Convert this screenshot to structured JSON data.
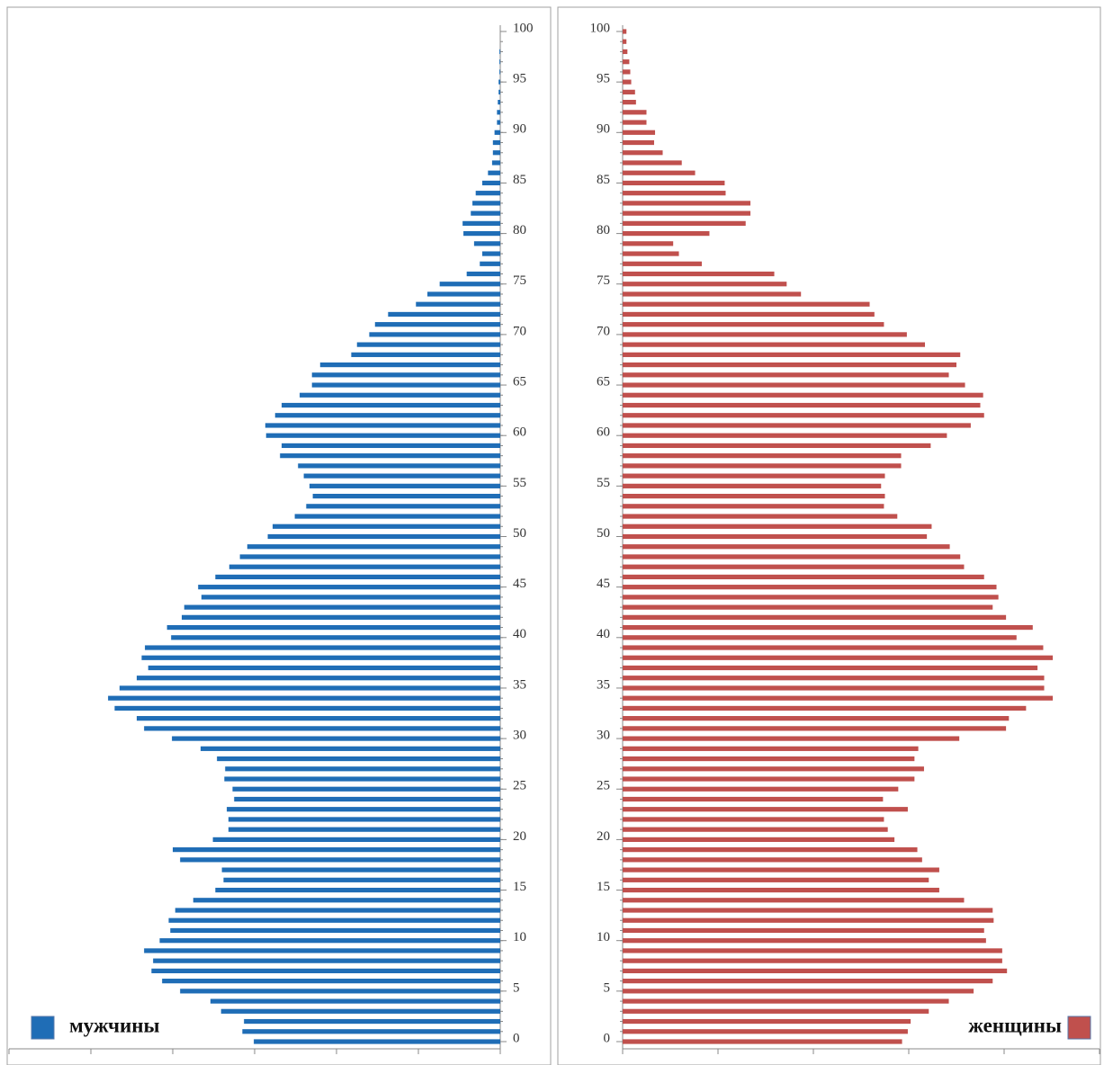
{
  "chart_data": [
    {
      "type": "hbar",
      "xdir": "left",
      "y": [
        0,
        1,
        2,
        3,
        4,
        5,
        6,
        7,
        8,
        9,
        10,
        11,
        12,
        13,
        14,
        15,
        16,
        17,
        18,
        19,
        20,
        21,
        22,
        23,
        24,
        25,
        26,
        27,
        28,
        29,
        30,
        31,
        32,
        33,
        34,
        35,
        36,
        37,
        38,
        39,
        40,
        41,
        42,
        43,
        44,
        45,
        46,
        47,
        48,
        49,
        50,
        51,
        52,
        53,
        54,
        55,
        56,
        57,
        58,
        59,
        60,
        61,
        62,
        63,
        64,
        65,
        66,
        67,
        68,
        69,
        70,
        71,
        72,
        73,
        74,
        75,
        76,
        77,
        78,
        79,
        80,
        81,
        82,
        83,
        84,
        85,
        86,
        87,
        88,
        89,
        90,
        91,
        92,
        93,
        94,
        95,
        96,
        97,
        98,
        99,
        100
      ],
      "series": [
        {
          "name": "мужчины",
          "color": "#1f6db6",
          "values": [
            301,
            315,
            313,
            341,
            354,
            391,
            413,
            426,
            424,
            435,
            416,
            403,
            405,
            397,
            375,
            348,
            338,
            340,
            391,
            400,
            351,
            332,
            332,
            334,
            325,
            327,
            337,
            336,
            346,
            366,
            401,
            435,
            444,
            471,
            479,
            465,
            444,
            430,
            438,
            434,
            402,
            407,
            389,
            386,
            365,
            369,
            348,
            331,
            318,
            309,
            284,
            278,
            251,
            237,
            229,
            233,
            240,
            247,
            269,
            267,
            286,
            287,
            275,
            267,
            245,
            230,
            230,
            220,
            182,
            175,
            160,
            153,
            137,
            103,
            89,
            74,
            41,
            25,
            22,
            32,
            45,
            46,
            36,
            34,
            30,
            22,
            15,
            10,
            9,
            9,
            7,
            4,
            4,
            3,
            2,
            2,
            1,
            1,
            1,
            0,
            0
          ]
        }
      ],
      "ylim": [
        0,
        100
      ],
      "yticks": [
        0,
        5,
        10,
        15,
        20,
        25,
        30,
        35,
        40,
        45,
        50,
        55,
        60,
        65,
        70,
        75,
        80,
        85,
        90,
        95,
        100
      ],
      "xlim": [
        0,
        600
      ],
      "xticks": [
        0,
        100,
        200,
        300,
        400,
        500,
        600
      ],
      "legend": "bottom-left"
    },
    {
      "type": "hbar",
      "xdir": "right",
      "y": [
        0,
        1,
        2,
        3,
        4,
        5,
        6,
        7,
        8,
        9,
        10,
        11,
        12,
        13,
        14,
        15,
        16,
        17,
        18,
        19,
        20,
        21,
        22,
        23,
        24,
        25,
        26,
        27,
        28,
        29,
        30,
        31,
        32,
        33,
        34,
        35,
        36,
        37,
        38,
        39,
        40,
        41,
        42,
        43,
        44,
        45,
        46,
        47,
        48,
        49,
        50,
        51,
        52,
        53,
        54,
        55,
        56,
        57,
        58,
        59,
        60,
        61,
        62,
        63,
        64,
        65,
        66,
        67,
        68,
        69,
        70,
        71,
        72,
        73,
        74,
        75,
        76,
        77,
        78,
        79,
        80,
        81,
        82,
        83,
        84,
        85,
        86,
        87,
        88,
        89,
        90,
        91,
        92,
        93,
        94,
        95,
        96,
        97,
        98,
        99,
        100
      ],
      "series": [
        {
          "name": "женщины",
          "color": "#c0504d",
          "values": [
            293,
            299,
            302,
            321,
            342,
            368,
            388,
            403,
            398,
            398,
            381,
            379,
            389,
            388,
            358,
            332,
            321,
            332,
            314,
            309,
            285,
            278,
            274,
            299,
            273,
            289,
            306,
            316,
            306,
            310,
            353,
            402,
            405,
            423,
            451,
            442,
            442,
            435,
            451,
            441,
            413,
            430,
            402,
            388,
            394,
            392,
            379,
            358,
            354,
            343,
            319,
            324,
            288,
            274,
            275,
            271,
            275,
            292,
            292,
            323,
            340,
            365,
            379,
            375,
            378,
            359,
            342,
            350,
            354,
            317,
            298,
            274,
            264,
            259,
            187,
            172,
            159,
            83,
            59,
            53,
            91,
            129,
            134,
            134,
            108,
            107,
            76,
            62,
            42,
            33,
            34,
            25,
            25,
            14,
            13,
            9,
            8,
            7,
            5,
            4,
            4
          ]
        }
      ],
      "ylim": [
        0,
        100
      ],
      "yticks": [
        0,
        5,
        10,
        15,
        20,
        25,
        30,
        35,
        40,
        45,
        50,
        55,
        60,
        65,
        70,
        75,
        80,
        85,
        90,
        95,
        100
      ],
      "xlim": [
        0,
        500
      ],
      "xticks": [
        0,
        100,
        200,
        300,
        400,
        500
      ],
      "legend": "bottom-right"
    }
  ]
}
